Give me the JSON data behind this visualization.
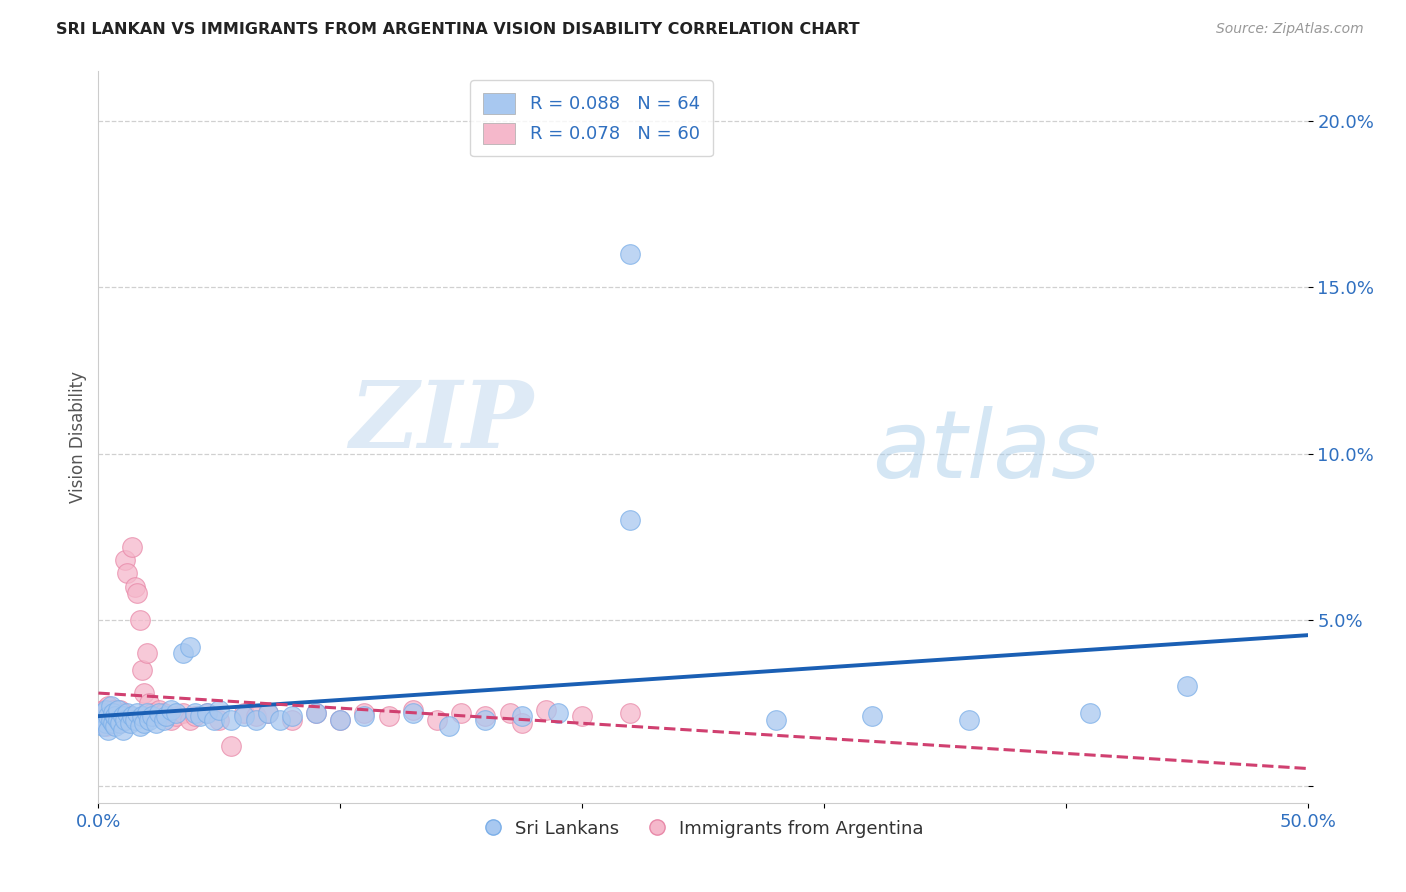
{
  "title": "SRI LANKAN VS IMMIGRANTS FROM ARGENTINA VISION DISABILITY CORRELATION CHART",
  "source": "Source: ZipAtlas.com",
  "ylabel": "Vision Disability",
  "xlim": [
    0.0,
    0.5
  ],
  "ylim": [
    -0.005,
    0.215
  ],
  "sri_lankans_color": "#a8c8f0",
  "sri_lankans_edge": "#7aaee8",
  "argentina_color": "#f5b8cb",
  "argentina_edge": "#e888a8",
  "sri_lankans_line_color": "#1a5fb4",
  "argentina_line_color": "#d04070",
  "legend_sri_R": "0.088",
  "legend_sri_N": "64",
  "legend_arg_R": "0.078",
  "legend_arg_N": "60",
  "watermark_zip": "ZIP",
  "watermark_atlas": "atlas",
  "tick_color": "#3070c0",
  "sri_lankans_x": [
    0.001,
    0.002,
    0.002,
    0.003,
    0.003,
    0.004,
    0.004,
    0.005,
    0.005,
    0.006,
    0.006,
    0.007,
    0.007,
    0.008,
    0.008,
    0.009,
    0.01,
    0.01,
    0.011,
    0.012,
    0.013,
    0.014,
    0.015,
    0.016,
    0.017,
    0.018,
    0.019,
    0.02,
    0.021,
    0.022,
    0.024,
    0.025,
    0.027,
    0.028,
    0.03,
    0.032,
    0.035,
    0.038,
    0.04,
    0.042,
    0.045,
    0.048,
    0.05,
    0.055,
    0.06,
    0.065,
    0.07,
    0.075,
    0.08,
    0.09,
    0.1,
    0.11,
    0.13,
    0.145,
    0.16,
    0.175,
    0.19,
    0.22,
    0.22,
    0.28,
    0.32,
    0.36,
    0.41,
    0.45
  ],
  "sri_lankans_y": [
    0.02,
    0.018,
    0.022,
    0.019,
    0.023,
    0.017,
    0.021,
    0.02,
    0.024,
    0.019,
    0.022,
    0.018,
    0.021,
    0.02,
    0.023,
    0.019,
    0.021,
    0.017,
    0.02,
    0.022,
    0.019,
    0.021,
    0.02,
    0.022,
    0.018,
    0.021,
    0.019,
    0.022,
    0.02,
    0.021,
    0.019,
    0.022,
    0.02,
    0.021,
    0.023,
    0.022,
    0.04,
    0.042,
    0.022,
    0.021,
    0.022,
    0.02,
    0.023,
    0.02,
    0.021,
    0.02,
    0.022,
    0.02,
    0.021,
    0.022,
    0.02,
    0.021,
    0.022,
    0.018,
    0.02,
    0.021,
    0.022,
    0.16,
    0.08,
    0.02,
    0.021,
    0.02,
    0.022,
    0.03
  ],
  "argentina_x": [
    0.001,
    0.001,
    0.002,
    0.002,
    0.003,
    0.003,
    0.004,
    0.004,
    0.005,
    0.005,
    0.006,
    0.006,
    0.007,
    0.007,
    0.008,
    0.008,
    0.009,
    0.009,
    0.01,
    0.01,
    0.011,
    0.012,
    0.013,
    0.014,
    0.015,
    0.016,
    0.017,
    0.018,
    0.019,
    0.02,
    0.021,
    0.022,
    0.024,
    0.025,
    0.027,
    0.03,
    0.032,
    0.035,
    0.038,
    0.04,
    0.045,
    0.05,
    0.055,
    0.06,
    0.065,
    0.07,
    0.08,
    0.09,
    0.1,
    0.11,
    0.12,
    0.13,
    0.14,
    0.15,
    0.16,
    0.17,
    0.175,
    0.185,
    0.2,
    0.22
  ],
  "argentina_y": [
    0.02,
    0.022,
    0.019,
    0.023,
    0.018,
    0.021,
    0.02,
    0.024,
    0.019,
    0.022,
    0.02,
    0.023,
    0.019,
    0.022,
    0.02,
    0.021,
    0.019,
    0.023,
    0.02,
    0.022,
    0.068,
    0.064,
    0.021,
    0.072,
    0.06,
    0.058,
    0.05,
    0.035,
    0.028,
    0.04,
    0.025,
    0.022,
    0.021,
    0.023,
    0.022,
    0.02,
    0.021,
    0.022,
    0.02,
    0.021,
    0.022,
    0.02,
    0.012,
    0.022,
    0.021,
    0.022,
    0.02,
    0.022,
    0.02,
    0.022,
    0.021,
    0.023,
    0.02,
    0.022,
    0.021,
    0.022,
    0.019,
    0.023,
    0.021,
    0.022
  ]
}
